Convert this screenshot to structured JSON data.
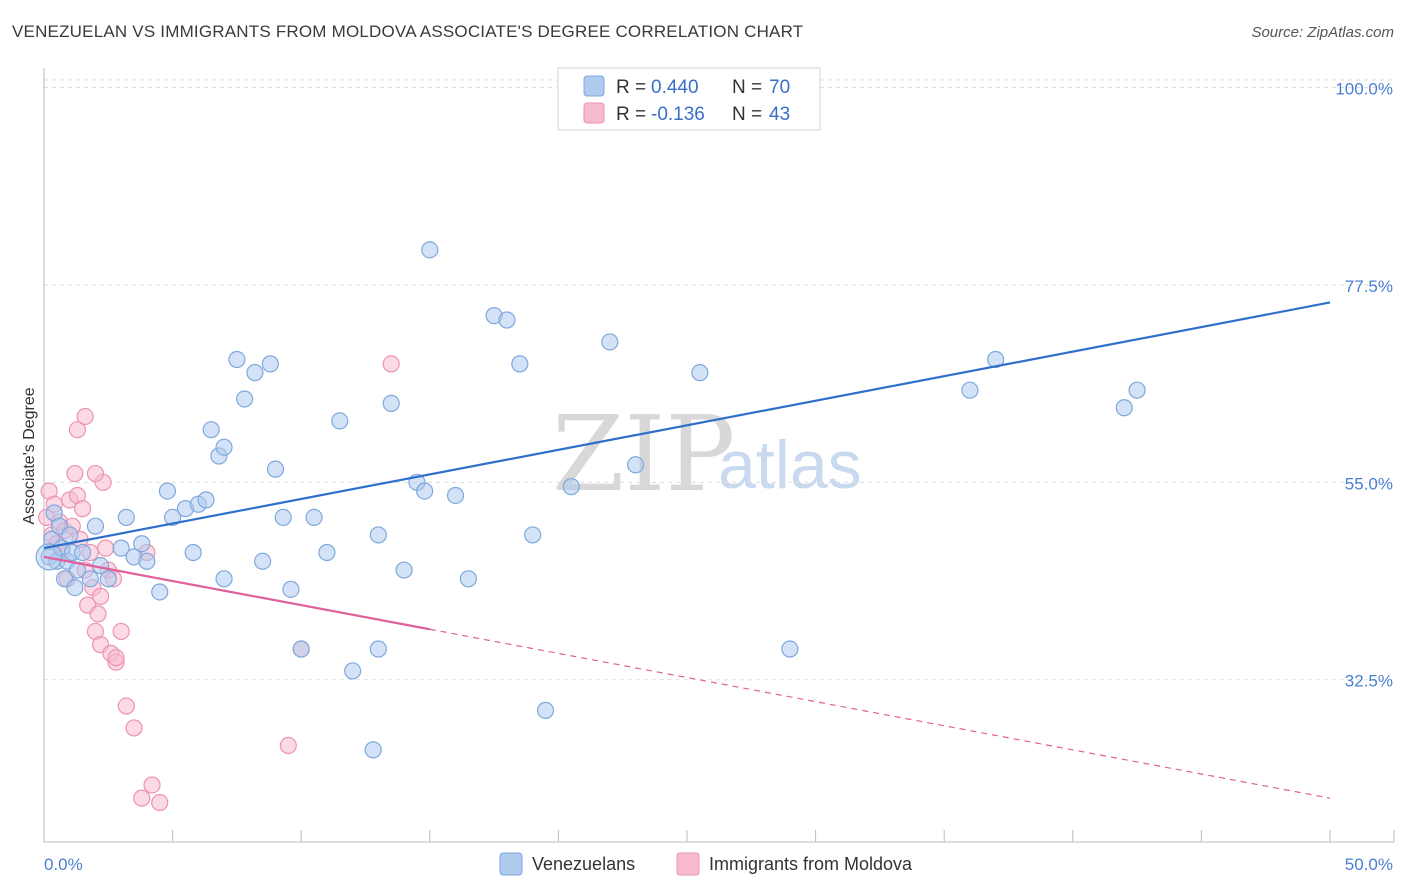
{
  "title": "VENEZUELAN VS IMMIGRANTS FROM MOLDOVA ASSOCIATE'S DEGREE CORRELATION CHART",
  "source": "Source: ZipAtlas.com",
  "watermark": {
    "zip": "ZIP",
    "atlas": "atlas"
  },
  "colors": {
    "blue": "#2f6fcc",
    "blue_fill": "#aecbee",
    "blue_stroke": "#7fa8dc",
    "pink": "#e0609a",
    "pink_fill": "#f7b9cf",
    "pink_stroke": "#ec93b4",
    "grid": "#dddddd",
    "axis": "#bbbbbb"
  },
  "legend": {
    "row1": {
      "r_label": "R = ",
      "r_value": "0.440",
      "n_label": "N = ",
      "n_value": "70"
    },
    "row2": {
      "r_label": "R = ",
      "r_value": "-0.136",
      "n_label": "N = ",
      "n_value": "43"
    }
  },
  "bottom_legend": [
    "Venezuelans",
    "Immigrants from Moldova"
  ],
  "chart_data": {
    "type": "scatter",
    "title": "VENEZUELAN VS IMMIGRANTS FROM MOLDOVA ASSOCIATE'S DEGREE CORRELATION CHART",
    "xlabel": "",
    "ylabel": "Associate's Degree",
    "xlim": [
      0,
      50
    ],
    "ylim": [
      14,
      102
    ],
    "x_tick_labels": [
      "0.0%",
      "50.0%"
    ],
    "y_ticks": [
      32.5,
      55.0,
      77.5,
      100.0
    ],
    "y_tick_labels": [
      "32.5%",
      "55.0%",
      "77.5%",
      "100.0%"
    ],
    "grid": true,
    "series": [
      {
        "name": "Venezuelans",
        "color": "#2f6fcc",
        "R": 0.44,
        "N": 70,
        "trend": {
          "x": [
            0,
            50
          ],
          "y": [
            47.5,
            75.5
          ],
          "dashed_from": null
        },
        "points": [
          [
            0.2,
            46.5
          ],
          [
            0.3,
            48.5
          ],
          [
            0.4,
            51.5
          ],
          [
            0.5,
            46
          ],
          [
            0.6,
            50
          ],
          [
            0.7,
            47.5
          ],
          [
            0.8,
            44
          ],
          [
            0.9,
            46
          ],
          [
            1.0,
            49
          ],
          [
            1.1,
            47
          ],
          [
            1.2,
            43
          ],
          [
            1.3,
            45
          ],
          [
            1.5,
            47
          ],
          [
            1.8,
            44
          ],
          [
            2.0,
            50
          ],
          [
            2.2,
            45.5
          ],
          [
            2.5,
            44
          ],
          [
            3.0,
            47.5
          ],
          [
            3.2,
            51
          ],
          [
            3.5,
            46.5
          ],
          [
            3.8,
            48
          ],
          [
            4.0,
            46
          ],
          [
            4.5,
            42.5
          ],
          [
            4.8,
            54
          ],
          [
            5.0,
            51
          ],
          [
            5.5,
            52
          ],
          [
            5.8,
            47
          ],
          [
            6.0,
            52.5
          ],
          [
            6.3,
            53
          ],
          [
            6.5,
            61
          ],
          [
            6.8,
            58
          ],
          [
            7.0,
            59
          ],
          [
            7.5,
            69
          ],
          [
            7.8,
            64.5
          ],
          [
            8.2,
            67.5
          ],
          [
            8.5,
            46
          ],
          [
            8.8,
            68.5
          ],
          [
            9.0,
            56.5
          ],
          [
            9.3,
            51
          ],
          [
            9.6,
            42.8
          ],
          [
            10.0,
            36
          ],
          [
            10.5,
            51
          ],
          [
            11.0,
            47
          ],
          [
            11.5,
            62
          ],
          [
            12.0,
            33.5
          ],
          [
            13.0,
            49
          ],
          [
            13.5,
            64
          ],
          [
            14.0,
            45
          ],
          [
            14.5,
            55
          ],
          [
            14.8,
            54
          ],
          [
            15.0,
            81.5
          ],
          [
            16.0,
            53.5
          ],
          [
            16.5,
            44
          ],
          [
            17.5,
            74
          ],
          [
            18.0,
            73.5
          ],
          [
            18.5,
            68.5
          ],
          [
            19.0,
            49
          ],
          [
            19.5,
            29
          ],
          [
            20.5,
            54.5
          ],
          [
            22.0,
            71
          ],
          [
            23.0,
            57
          ],
          [
            25.5,
            67.5
          ],
          [
            29.0,
            36
          ],
          [
            36,
            65.5
          ],
          [
            37,
            69
          ],
          [
            42,
            63.5
          ],
          [
            42.5,
            65.5
          ],
          [
            13.0,
            36
          ],
          [
            12.8,
            24.5
          ],
          [
            7.0,
            44
          ]
        ]
      },
      {
        "name": "Immigrants from Moldova",
        "color": "#e0609a",
        "R": -0.136,
        "N": 43,
        "trend": {
          "x": [
            0,
            50
          ],
          "y": [
            46.5,
            19.0
          ],
          "solid_to": 15
        },
        "points": [
          [
            0.1,
            51
          ],
          [
            0.2,
            54
          ],
          [
            0.3,
            49
          ],
          [
            0.4,
            52.5
          ],
          [
            0.5,
            48
          ],
          [
            0.6,
            50.5
          ],
          [
            0.7,
            47
          ],
          [
            0.8,
            49.5
          ],
          [
            0.9,
            44
          ],
          [
            1.0,
            53
          ],
          [
            1.1,
            50
          ],
          [
            1.2,
            56
          ],
          [
            1.3,
            53.5
          ],
          [
            1.4,
            48.5
          ],
          [
            1.5,
            52
          ],
          [
            1.6,
            45
          ],
          [
            1.7,
            41
          ],
          [
            1.8,
            47
          ],
          [
            1.9,
            43
          ],
          [
            2.0,
            38
          ],
          [
            2.1,
            40
          ],
          [
            2.2,
            36.5
          ],
          [
            2.3,
            55
          ],
          [
            2.4,
            47.5
          ],
          [
            2.5,
            45
          ],
          [
            2.6,
            35.5
          ],
          [
            2.7,
            44
          ],
          [
            2.8,
            34.5
          ],
          [
            3.0,
            38
          ],
          [
            3.2,
            29.5
          ],
          [
            3.5,
            27
          ],
          [
            3.8,
            19
          ],
          [
            4.0,
            47
          ],
          [
            4.2,
            20.5
          ],
          [
            4.5,
            18.5
          ],
          [
            1.3,
            61
          ],
          [
            1.6,
            62.5
          ],
          [
            2.0,
            56
          ],
          [
            2.2,
            42
          ],
          [
            2.8,
            35
          ],
          [
            9.5,
            25
          ],
          [
            10.0,
            36
          ],
          [
            13.5,
            68.5
          ]
        ]
      }
    ]
  }
}
